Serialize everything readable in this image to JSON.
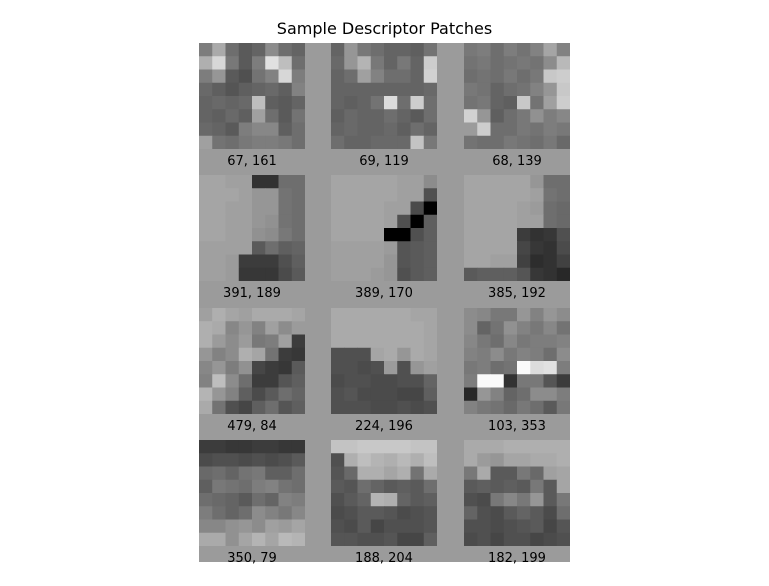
{
  "chart_data": {
    "type": "heatmap",
    "title": "Sample Descriptor Patches",
    "background_gray": 155,
    "patches": [
      {
        "label": "67, 161",
        "pixels": [
          [
            125,
            170,
            110,
            90,
            100,
            140,
            110,
            100
          ],
          [
            175,
            215,
            120,
            90,
            125,
            225,
            190,
            110
          ],
          [
            125,
            150,
            90,
            80,
            115,
            130,
            215,
            125
          ],
          [
            105,
            95,
            85,
            95,
            100,
            105,
            95,
            130
          ],
          [
            100,
            105,
            100,
            105,
            190,
            95,
            90,
            100
          ],
          [
            100,
            95,
            105,
            95,
            160,
            110,
            90,
            115
          ],
          [
            105,
            100,
            90,
            125,
            135,
            135,
            95,
            110
          ],
          [
            160,
            115,
            110,
            120,
            125,
            125,
            120,
            110
          ]
        ]
      },
      {
        "label": "69, 119",
        "pixels": [
          [
            100,
            150,
            120,
            110,
            100,
            100,
            95,
            115
          ],
          [
            105,
            150,
            180,
            120,
            100,
            120,
            100,
            205
          ],
          [
            100,
            110,
            160,
            130,
            110,
            110,
            100,
            210
          ],
          [
            100,
            100,
            100,
            100,
            100,
            100,
            100,
            105
          ],
          [
            100,
            95,
            100,
            115,
            220,
            110,
            205,
            110
          ],
          [
            95,
            105,
            100,
            100,
            110,
            100,
            90,
            110
          ],
          [
            100,
            105,
            100,
            100,
            105,
            95,
            110,
            100
          ],
          [
            110,
            100,
            100,
            105,
            105,
            105,
            195,
            120
          ]
        ]
      },
      {
        "label": "68, 139",
        "pixels": [
          [
            120,
            125,
            110,
            125,
            115,
            130,
            165,
            130
          ],
          [
            115,
            120,
            110,
            115,
            120,
            115,
            140,
            185
          ],
          [
            110,
            115,
            110,
            120,
            110,
            120,
            200,
            205
          ],
          [
            120,
            115,
            100,
            110,
            115,
            130,
            150,
            200
          ],
          [
            115,
            120,
            100,
            95,
            200,
            115,
            160,
            205
          ],
          [
            210,
            150,
            95,
            110,
            120,
            145,
            125,
            135
          ],
          [
            155,
            205,
            110,
            110,
            120,
            115,
            125,
            120
          ],
          [
            115,
            110,
            110,
            120,
            115,
            110,
            120,
            105
          ]
        ]
      },
      {
        "label": "391, 189",
        "pixels": [
          [
            165,
            165,
            160,
            160,
            50,
            50,
            110,
            110
          ],
          [
            165,
            165,
            165,
            160,
            150,
            150,
            115,
            110
          ],
          [
            165,
            165,
            160,
            160,
            150,
            150,
            115,
            110
          ],
          [
            165,
            165,
            160,
            160,
            150,
            145,
            115,
            110
          ],
          [
            165,
            165,
            160,
            160,
            145,
            140,
            120,
            110
          ],
          [
            160,
            160,
            160,
            160,
            90,
            110,
            95,
            100
          ],
          [
            160,
            160,
            155,
            60,
            60,
            60,
            80,
            95
          ],
          [
            160,
            160,
            155,
            55,
            55,
            55,
            75,
            90
          ]
        ]
      },
      {
        "label": "389, 170",
        "pixels": [
          [
            165,
            165,
            165,
            165,
            165,
            160,
            160,
            140
          ],
          [
            165,
            165,
            165,
            165,
            165,
            160,
            160,
            80
          ],
          [
            165,
            165,
            165,
            165,
            160,
            160,
            75,
            0
          ],
          [
            165,
            165,
            165,
            165,
            160,
            80,
            0,
            95
          ],
          [
            165,
            165,
            165,
            165,
            0,
            0,
            80,
            95
          ],
          [
            160,
            160,
            160,
            160,
            155,
            85,
            90,
            95
          ],
          [
            160,
            160,
            160,
            160,
            150,
            85,
            90,
            95
          ],
          [
            160,
            160,
            160,
            155,
            150,
            80,
            90,
            95
          ]
        ]
      },
      {
        "label": "385, 192",
        "pixels": [
          [
            165,
            165,
            165,
            165,
            165,
            150,
            110,
            110
          ],
          [
            165,
            165,
            165,
            165,
            165,
            160,
            115,
            110
          ],
          [
            165,
            165,
            165,
            165,
            160,
            155,
            110,
            105
          ],
          [
            165,
            165,
            165,
            165,
            160,
            160,
            110,
            105
          ],
          [
            165,
            165,
            165,
            165,
            60,
            50,
            55,
            80
          ],
          [
            165,
            165,
            165,
            165,
            70,
            55,
            50,
            75
          ],
          [
            165,
            165,
            160,
            160,
            65,
            45,
            50,
            65
          ],
          [
            90,
            95,
            95,
            95,
            85,
            55,
            50,
            40
          ]
        ]
      },
      {
        "label": "479, 84",
        "pixels": [
          [
            160,
            175,
            165,
            160,
            170,
            170,
            170,
            165
          ],
          [
            175,
            170,
            135,
            150,
            130,
            160,
            140,
            155
          ],
          [
            175,
            155,
            140,
            155,
            120,
            125,
            160,
            60
          ],
          [
            150,
            130,
            140,
            175,
            165,
            115,
            60,
            55
          ],
          [
            135,
            150,
            125,
            145,
            70,
            60,
            55,
            90
          ],
          [
            130,
            190,
            140,
            110,
            60,
            60,
            85,
            95
          ],
          [
            180,
            150,
            130,
            95,
            75,
            90,
            110,
            100
          ],
          [
            170,
            115,
            80,
            70,
            95,
            110,
            85,
            95
          ]
        ]
      },
      {
        "label": "224, 196",
        "pixels": [
          [
            170,
            170,
            170,
            170,
            170,
            170,
            165,
            165
          ],
          [
            170,
            170,
            170,
            170,
            170,
            170,
            170,
            165
          ],
          [
            170,
            170,
            170,
            170,
            170,
            170,
            170,
            165
          ],
          [
            80,
            80,
            80,
            165,
            170,
            150,
            170,
            165
          ],
          [
            80,
            80,
            75,
            80,
            155,
            80,
            150,
            160
          ],
          [
            75,
            80,
            80,
            75,
            75,
            80,
            80,
            100
          ],
          [
            80,
            85,
            75,
            75,
            75,
            70,
            70,
            95
          ],
          [
            80,
            80,
            80,
            75,
            75,
            80,
            75,
            80
          ]
        ]
      },
      {
        "label": "103, 353",
        "pixels": [
          [
            140,
            135,
            120,
            120,
            150,
            130,
            150,
            140
          ],
          [
            140,
            100,
            115,
            145,
            130,
            120,
            135,
            115
          ],
          [
            135,
            120,
            110,
            135,
            120,
            125,
            125,
            130
          ],
          [
            130,
            125,
            140,
            120,
            130,
            125,
            110,
            140
          ],
          [
            120,
            125,
            110,
            115,
            250,
            220,
            225,
            125
          ],
          [
            125,
            250,
            250,
            50,
            120,
            120,
            85,
            60
          ],
          [
            40,
            150,
            130,
            100,
            110,
            140,
            140,
            125
          ],
          [
            130,
            120,
            115,
            105,
            120,
            110,
            90,
            120
          ]
        ]
      },
      {
        "label": "350, 79",
        "pixels": [
          [
            60,
            60,
            55,
            55,
            60,
            60,
            55,
            55
          ],
          [
            75,
            80,
            80,
            75,
            80,
            75,
            80,
            90
          ],
          [
            105,
            110,
            100,
            115,
            120,
            95,
            95,
            110
          ],
          [
            95,
            120,
            115,
            110,
            125,
            130,
            115,
            110
          ],
          [
            110,
            105,
            100,
            90,
            110,
            100,
            130,
            125
          ],
          [
            125,
            110,
            100,
            110,
            140,
            130,
            120,
            135
          ],
          [
            135,
            135,
            145,
            150,
            140,
            160,
            155,
            165
          ],
          [
            170,
            170,
            145,
            165,
            180,
            165,
            185,
            180
          ]
        ]
      },
      {
        "label": "188, 204",
        "pixels": [
          [
            195,
            195,
            200,
            200,
            200,
            200,
            195,
            195
          ],
          [
            80,
            175,
            190,
            180,
            175,
            185,
            175,
            190
          ],
          [
            85,
            105,
            175,
            175,
            165,
            175,
            115,
            170
          ],
          [
            90,
            85,
            110,
            100,
            90,
            95,
            90,
            110
          ],
          [
            80,
            90,
            100,
            180,
            175,
            100,
            90,
            95
          ],
          [
            75,
            80,
            90,
            90,
            85,
            75,
            80,
            85
          ],
          [
            80,
            75,
            90,
            70,
            80,
            80,
            80,
            85
          ],
          [
            85,
            85,
            80,
            80,
            85,
            70,
            70,
            95
          ]
        ]
      },
      {
        "label": "182, 199",
        "pixels": [
          [
            170,
            170,
            170,
            175,
            175,
            175,
            175,
            175
          ],
          [
            170,
            155,
            150,
            165,
            165,
            170,
            170,
            175
          ],
          [
            120,
            170,
            90,
            90,
            120,
            105,
            160,
            165
          ],
          [
            90,
            95,
            90,
            95,
            90,
            120,
            90,
            165
          ],
          [
            80,
            75,
            120,
            135,
            120,
            150,
            90,
            120
          ],
          [
            100,
            80,
            75,
            90,
            100,
            90,
            75,
            110
          ],
          [
            80,
            80,
            75,
            80,
            85,
            90,
            70,
            85
          ],
          [
            75,
            80,
            70,
            80,
            80,
            70,
            75,
            80
          ]
        ]
      }
    ]
  }
}
